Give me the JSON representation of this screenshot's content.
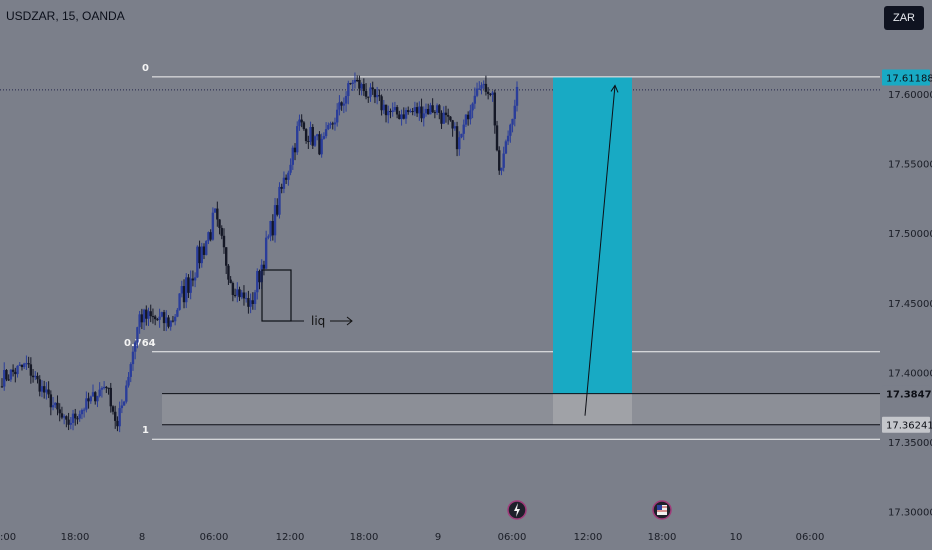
{
  "header": {
    "symbol_line": "USDZAR, 15, OANDA",
    "currency_button": "ZAR"
  },
  "colors": {
    "background": "#7b7f8a",
    "up_candle": "#2a3d9a",
    "down_candle": "#151826",
    "target_zone": "#18aac4",
    "stop_zone": "#a6a8ae",
    "fib_line": "#f2f2f2"
  },
  "chart_data": {
    "type": "candlestick",
    "instrument": "USDZAR",
    "timeframe": "15",
    "broker": "OANDA",
    "y_axis": {
      "ylim": [
        17.28,
        17.7
      ],
      "ticks": [
        17.6,
        17.55,
        17.5,
        17.45,
        17.4,
        17.35,
        17.3
      ],
      "tick_labels": [
        "17.60000",
        "17.55000",
        "17.50000",
        "17.45000",
        "17.40000",
        "17.35000",
        "17.30000"
      ]
    },
    "x_axis": {
      "tick_labels": [
        ":00",
        "18:00",
        "8",
        "06:00",
        "12:00",
        "18:00",
        "9",
        "06:00",
        "12:00",
        "18:00",
        "10",
        "06:00"
      ]
    },
    "price_labels": [
      {
        "text": "17.61188",
        "value": 17.61188,
        "style": "target"
      },
      {
        "text": "17.38472",
        "value": 17.38472,
        "style": "entry"
      },
      {
        "text": "17.36241",
        "value": 17.36241,
        "style": "stop"
      }
    ],
    "fib_levels": [
      {
        "label": "0",
        "value": 17.6123
      },
      {
        "label": "0.764",
        "value": 17.4148
      },
      {
        "label": "1",
        "value": 17.352
      }
    ],
    "current_price": 17.603,
    "annotation": {
      "text": "liq"
    },
    "events": [
      {
        "icon": "bolt-icon"
      },
      {
        "icon": "us-flag-icon"
      }
    ],
    "position": {
      "target": 17.61188,
      "entry": 17.38472,
      "stop": 17.36241
    },
    "segments": [
      {
        "n": 12,
        "start": 17.395,
        "end": 17.405,
        "noise": 0.012
      },
      {
        "n": 18,
        "start": 17.405,
        "end": 17.362,
        "noise": 0.01
      },
      {
        "n": 18,
        "start": 17.362,
        "end": 17.392,
        "noise": 0.01
      },
      {
        "n": 5,
        "start": 17.392,
        "end": 17.36,
        "noise": 0.008
      },
      {
        "n": 10,
        "start": 17.36,
        "end": 17.44,
        "noise": 0.015
      },
      {
        "n": 14,
        "start": 17.44,
        "end": 17.436,
        "noise": 0.014
      },
      {
        "n": 20,
        "start": 17.436,
        "end": 17.51,
        "noise": 0.02
      },
      {
        "n": 8,
        "start": 17.51,
        "end": 17.462,
        "noise": 0.015
      },
      {
        "n": 8,
        "start": 17.462,
        "end": 17.448,
        "noise": 0.01
      },
      {
        "n": 22,
        "start": 17.448,
        "end": 17.578,
        "noise": 0.018
      },
      {
        "n": 10,
        "start": 17.578,
        "end": 17.562,
        "noise": 0.015
      },
      {
        "n": 14,
        "start": 17.562,
        "end": 17.61,
        "noise": 0.012
      },
      {
        "n": 18,
        "start": 17.61,
        "end": 17.585,
        "noise": 0.012
      },
      {
        "n": 20,
        "start": 17.585,
        "end": 17.59,
        "noise": 0.012
      },
      {
        "n": 10,
        "start": 17.59,
        "end": 17.565,
        "noise": 0.015
      },
      {
        "n": 8,
        "start": 17.565,
        "end": 17.608,
        "noise": 0.01
      },
      {
        "n": 7,
        "start": 17.608,
        "end": 17.6,
        "noise": 0.006
      },
      {
        "n": 3,
        "start": 17.6,
        "end": 17.54,
        "noise": 0.01
      },
      {
        "n": 8,
        "start": 17.54,
        "end": 17.602,
        "noise": 0.01
      }
    ]
  }
}
